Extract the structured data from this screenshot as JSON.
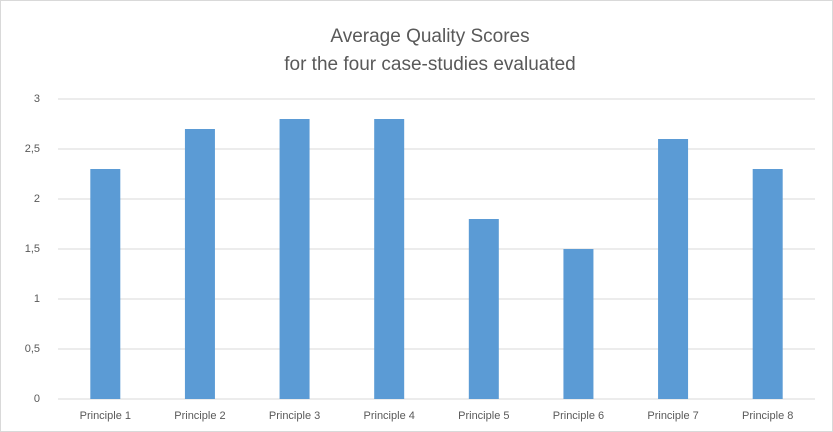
{
  "chart_data": {
    "type": "bar",
    "title": "Average Quality Scores",
    "subtitle": "for the four case-studies evaluated",
    "categories": [
      "Principle 1",
      "Principle 2",
      "Principle 3",
      "Principle 4",
      "Principle 5",
      "Principle 6",
      "Principle 7",
      "Principle 8"
    ],
    "values": [
      2.3,
      2.7,
      2.8,
      2.8,
      1.8,
      1.5,
      2.6,
      2.3
    ],
    "color": "#5b9bd5",
    "ylim": [
      0,
      3
    ],
    "yticks": [
      0,
      {
        "value": 0.5,
        "label": "0,5"
      },
      1,
      {
        "value": 1.5,
        "label": "1,5"
      },
      2,
      {
        "value": 2.5,
        "label": "2,5"
      },
      3
    ],
    "grid": true
  }
}
